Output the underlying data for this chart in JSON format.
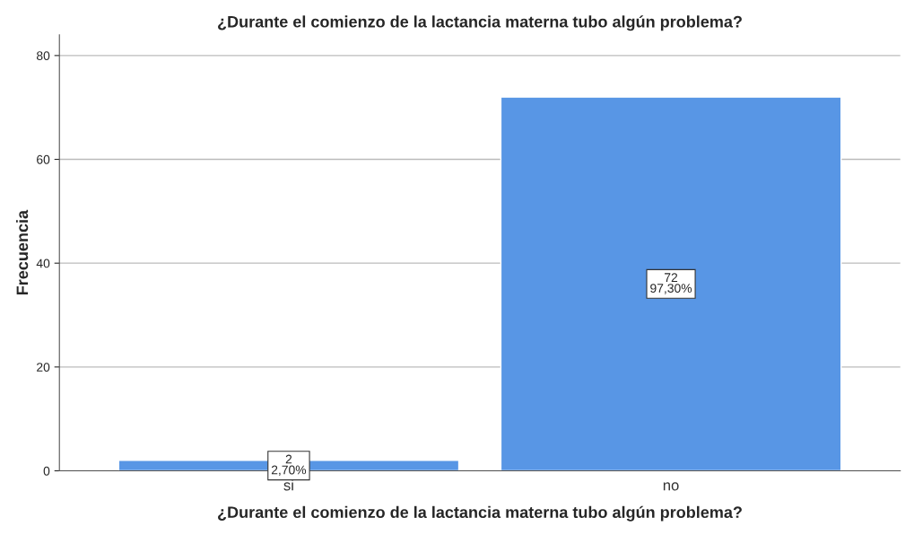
{
  "chart_data": {
    "type": "bar",
    "title": "¿Durante el comienzo de la lactancia materna tubo algún problema?",
    "xlabel": "¿Durante el comienzo de la lactancia materna tubo algún problema?",
    "ylabel": "Frecuencia",
    "categories": [
      "si",
      "no"
    ],
    "values": [
      2,
      72
    ],
    "color": "#5896e5",
    "value_labels": [
      "2\n2,70%",
      "72\n97,30%"
    ],
    "ylim": [
      0,
      84
    ],
    "yticks": [
      0,
      20,
      40,
      60,
      80
    ],
    "grid": "y"
  }
}
